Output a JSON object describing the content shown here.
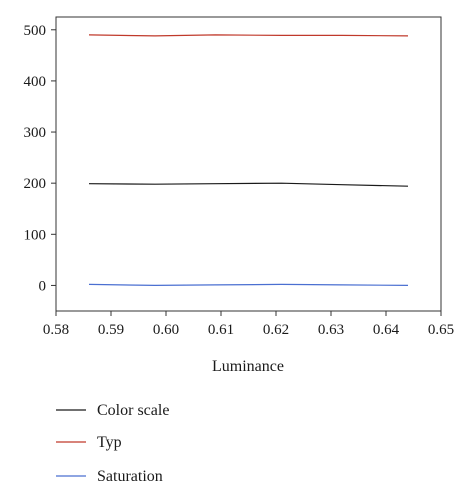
{
  "chart_data": {
    "type": "line",
    "title": "",
    "xlabel": "Luminance",
    "ylabel": "",
    "xlim": [
      0.58,
      0.65
    ],
    "ylim": [
      -50,
      525
    ],
    "xticks": [
      "0.58",
      "0.59",
      "0.60",
      "0.61",
      "0.62",
      "0.63",
      "0.64",
      "0.65"
    ],
    "yticks": [
      "500",
      "400",
      "300",
      "200",
      "100",
      "0"
    ],
    "xtick_values": [
      0.58,
      0.59,
      0.6,
      0.61,
      0.62,
      0.63,
      0.64,
      0.65
    ],
    "ytick_values": [
      500,
      400,
      300,
      200,
      100,
      0
    ],
    "grid": false,
    "legend_position": "bottom",
    "series": [
      {
        "name": "Color scale",
        "color": "#1a1a1a",
        "x": [
          0.586,
          0.598,
          0.609,
          0.621,
          0.632,
          0.644
        ],
        "y": [
          199,
          198,
          199,
          200,
          197,
          194
        ]
      },
      {
        "name": "Typ",
        "color": "#c0392b",
        "x": [
          0.586,
          0.598,
          0.609,
          0.621,
          0.632,
          0.644
        ],
        "y": [
          490,
          488,
          490,
          489,
          489,
          488
        ]
      },
      {
        "name": "Saturation",
        "color": "#4a6fd1",
        "x": [
          0.586,
          0.598,
          0.609,
          0.621,
          0.632,
          0.644
        ],
        "y": [
          2,
          0,
          1,
          2,
          1,
          0
        ]
      }
    ]
  }
}
